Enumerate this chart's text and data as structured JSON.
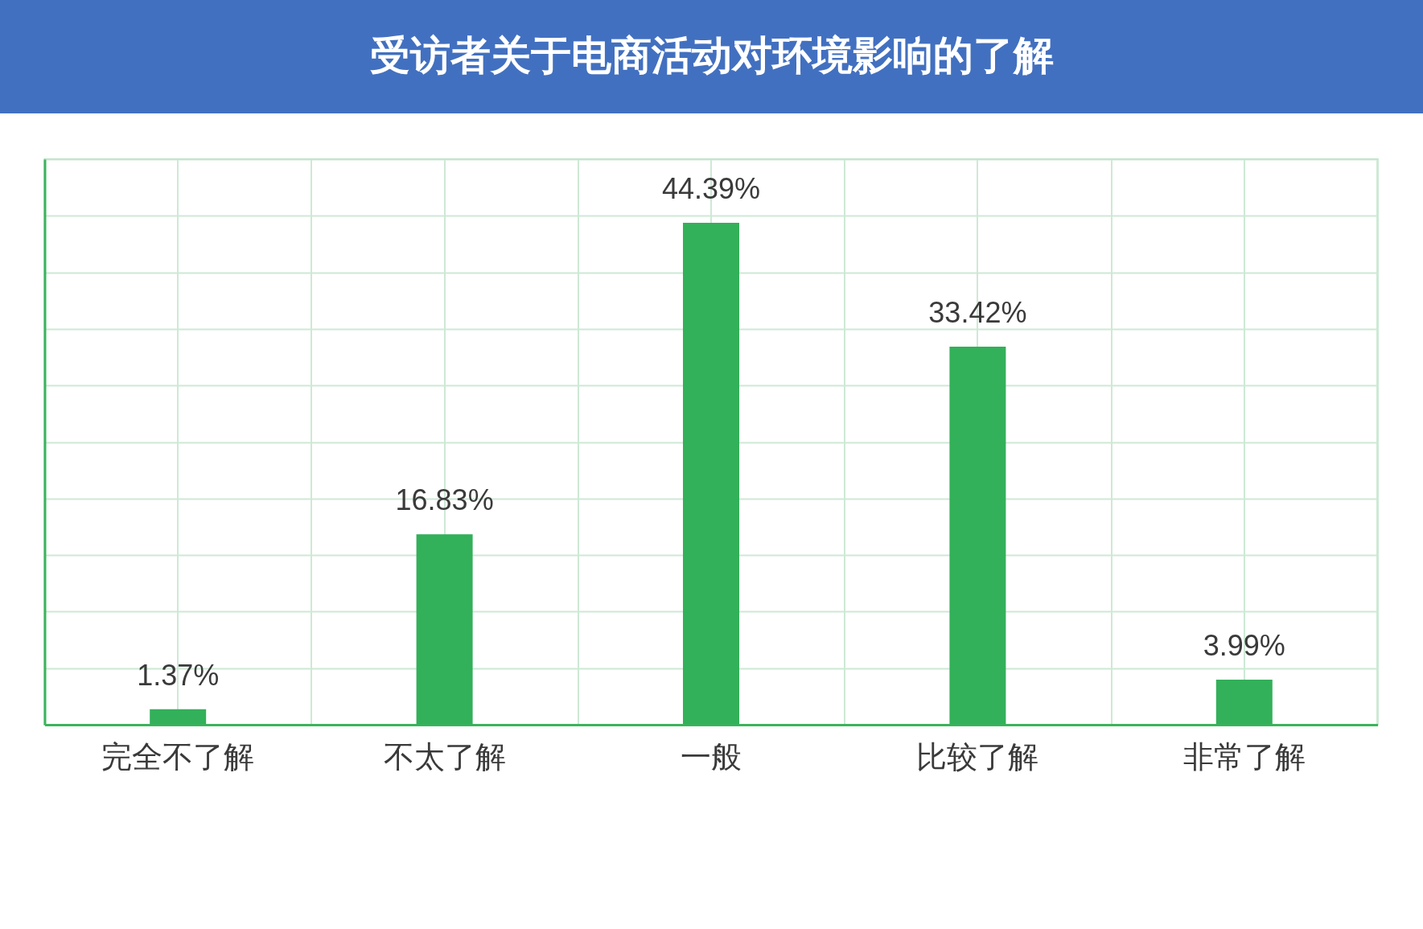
{
  "chart_data": {
    "type": "bar",
    "title": "受访者关于电商活动对环境影响的了解",
    "categories": [
      "完全不了解",
      "不太了解",
      "一般",
      "比较了解",
      "非常了解"
    ],
    "values": [
      1.37,
      16.83,
      44.39,
      33.42,
      3.99
    ],
    "value_labels": [
      "1.37%",
      "16.83%",
      "44.39%",
      "33.42%",
      "3.99%"
    ],
    "color": "#33b05a",
    "ylim": [
      0,
      50
    ],
    "yticks": [
      {
        "value": 0,
        "label": null
      },
      {
        "value": 5,
        "label": null
      },
      {
        "value": 10,
        "label": null
      },
      {
        "value": 15,
        "label": null
      },
      {
        "value": 20,
        "label": null
      },
      {
        "value": 25,
        "label": null
      },
      {
        "value": 30,
        "label": null
      },
      {
        "value": 35,
        "label": null
      },
      {
        "value": 40,
        "label": null
      },
      {
        "value": 45,
        "label": null
      },
      {
        "value": 50,
        "label": null
      }
    ],
    "grid": true,
    "tick_labels": "x"
  }
}
